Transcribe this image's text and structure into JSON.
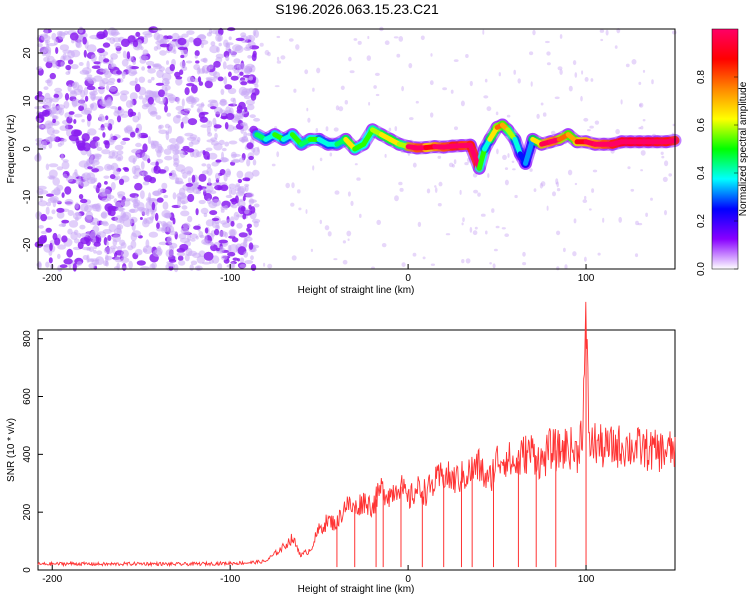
{
  "title": "S196.2026.063.15.23.C21",
  "chart_data": [
    {
      "type": "heatmap",
      "xlabel": "Height of straight line (km)",
      "ylabel": "Frequency (Hz)",
      "xlim": [
        -208,
        150
      ],
      "ylim": [
        -25,
        25
      ],
      "xticks": [
        -200,
        -100,
        0,
        100
      ],
      "yticks": [
        20,
        10,
        0,
        -10,
        -20
      ],
      "colorbar": {
        "label": "Normalized spectral amplitude",
        "range": [
          0,
          1
        ],
        "ticks": [
          "0.0",
          "0.2",
          "0.4",
          "0.6",
          "0.8"
        ],
        "tick_values": [
          0,
          0.2,
          0.4,
          0.6,
          0.8
        ],
        "colors": [
          "#ffffff",
          "#8800ff",
          "#0000ff",
          "#00ffff",
          "#00ff00",
          "#ffff00",
          "#ff8800",
          "#ff0000",
          "#ff0066"
        ]
      },
      "noise_region_x": [
        -208,
        -85
      ],
      "ridge": {
        "x": [
          -85,
          -80,
          -75,
          -70,
          -65,
          -60,
          -55,
          -50,
          -45,
          -40,
          -35,
          -30,
          -25,
          -20,
          -15,
          -10,
          -5,
          0,
          5,
          10,
          15,
          20,
          25,
          30,
          35,
          40,
          43,
          46,
          50,
          53,
          56,
          60,
          63,
          66,
          70,
          75,
          80,
          85,
          90,
          95,
          100,
          105,
          110,
          115,
          120,
          125,
          130,
          135,
          140,
          145,
          150
        ],
        "freq": [
          3,
          2,
          3,
          2,
          3,
          1,
          2,
          2,
          1,
          1,
          2,
          0,
          1,
          4,
          3,
          2,
          1,
          0.5,
          0.2,
          0.3,
          0.5,
          0.4,
          0.6,
          0.7,
          0.8,
          -4,
          0,
          2,
          4.5,
          5,
          4,
          2,
          -1,
          -3,
          2,
          1,
          1.5,
          2,
          3,
          1.5,
          1.5,
          1,
          1,
          1,
          1.5,
          1.5,
          1.5,
          1.5,
          1.5,
          1.5,
          1.8
        ],
        "amp": [
          0.35,
          0.3,
          0.4,
          0.3,
          0.4,
          0.35,
          0.4,
          0.3,
          0.3,
          0.35,
          0.5,
          0.4,
          0.4,
          0.45,
          0.5,
          0.5,
          0.45,
          0.8,
          0.85,
          0.7,
          0.8,
          0.85,
          0.9,
          0.85,
          0.9,
          0.4,
          0.3,
          0.5,
          0.6,
          0.55,
          0.45,
          0.3,
          0.2,
          0.25,
          0.5,
          0.75,
          0.8,
          0.6,
          0.55,
          0.7,
          0.75,
          0.8,
          0.85,
          0.9,
          0.95,
          0.95,
          0.95,
          0.95,
          0.9,
          0.9,
          0.9
        ]
      }
    },
    {
      "type": "line",
      "xlabel": "Height of straight line (km)",
      "ylabel": "SNR (10 * v/v)",
      "xlim": [
        -208,
        150
      ],
      "ylim": [
        0,
        830
      ],
      "xticks": [
        -200,
        -100,
        0,
        100
      ],
      "yticks": [
        0,
        200,
        400,
        600,
        800
      ],
      "color": "#ff3333",
      "x": [
        -208,
        -190,
        -170,
        -150,
        -130,
        -110,
        -90,
        -80,
        -70,
        -65,
        -60,
        -55,
        -50,
        -45,
        -40,
        -35,
        -30,
        -25,
        -20,
        -15,
        -10,
        -5,
        0,
        5,
        10,
        15,
        20,
        25,
        30,
        35,
        40,
        45,
        50,
        55,
        60,
        65,
        70,
        75,
        80,
        85,
        90,
        95,
        98,
        100,
        102,
        105,
        110,
        120,
        130,
        140,
        150
      ],
      "y": [
        20,
        22,
        20,
        22,
        20,
        22,
        25,
        30,
        80,
        110,
        50,
        70,
        140,
        170,
        160,
        230,
        210,
        240,
        220,
        280,
        260,
        300,
        240,
        280,
        270,
        300,
        330,
        310,
        320,
        340,
        360,
        300,
        380,
        390,
        360,
        400,
        410,
        370,
        420,
        410,
        430,
        400,
        500,
        830,
        430,
        440,
        420,
        430,
        420,
        410,
        415
      ],
      "dips_x": [
        -40,
        -30,
        -18,
        -14,
        -4,
        8,
        20,
        30,
        36,
        48,
        62,
        72,
        83,
        100
      ]
    }
  ]
}
